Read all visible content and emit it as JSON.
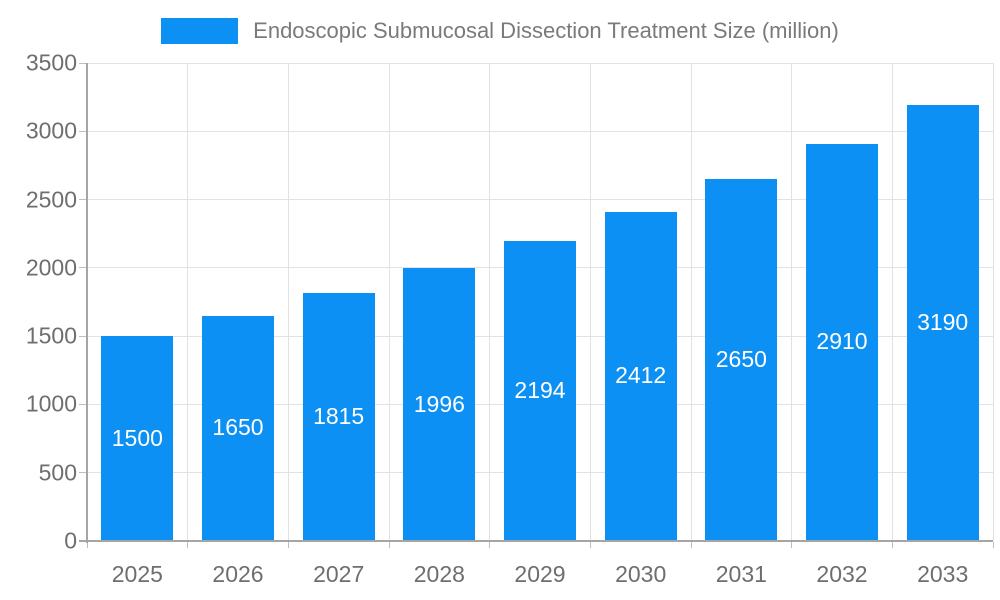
{
  "chart_data": {
    "type": "bar",
    "title": "Endoscopic Submucosal Dissection Treatment Size (million)",
    "legend": {
      "position": "top",
      "entries": [
        "Endoscopic Submucosal Dissection Treatment Size (million)"
      ]
    },
    "categories": [
      "2025",
      "2026",
      "2027",
      "2028",
      "2029",
      "2030",
      "2031",
      "2032",
      "2033"
    ],
    "values": [
      1500,
      1650,
      1815,
      1996,
      2194,
      2412,
      2650,
      2910,
      3190
    ],
    "value_labels": [
      "1500",
      "1650",
      "1815",
      "1996",
      "2194",
      "2412",
      "2650",
      "2910",
      "3190"
    ],
    "xlabel": "",
    "ylabel": "",
    "ylim": [
      0,
      3500
    ],
    "ytick_step": 500,
    "ytick_labels": [
      "0",
      "500",
      "1000",
      "1500",
      "2000",
      "2500",
      "3000",
      "3500"
    ],
    "grid": true,
    "colors": {
      "bar": "#0D90F3",
      "value_label_text": "#FFFFFF",
      "axis_label_text": "#6E6E6E",
      "title_text": "#7A7A7A",
      "grid_line": "#E2E2E2",
      "axis_line": "#A5A5A5",
      "tick_line": "#BEBEBE",
      "background": "#FFFFFF"
    }
  }
}
